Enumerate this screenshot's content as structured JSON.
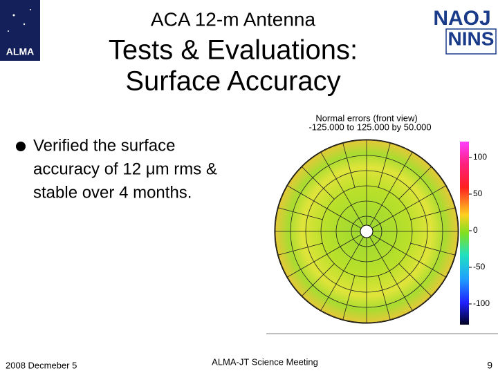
{
  "logos": {
    "left": "ALMA",
    "right_top": "NAOJ",
    "right_bottom": "NINS"
  },
  "header": {
    "subtitle": "ACA 12-m Antenna",
    "title_lines": [
      "Tests & Evaluations:",
      "Surface Accuracy"
    ]
  },
  "bullet_lines": [
    "Verified the surface",
    "accuracy of 12 μm rms &",
    "stable over 4 months."
  ],
  "figure": {
    "title": "Normal errors (front view)",
    "range": "-125.000 to 125.000 by 50.000",
    "colorbar_ticks": [
      100,
      50,
      0,
      -50,
      -100
    ]
  },
  "footer": {
    "date": "2008 Decmeber 5",
    "event": "ALMA-JT Science Meeting",
    "page": 9
  }
}
